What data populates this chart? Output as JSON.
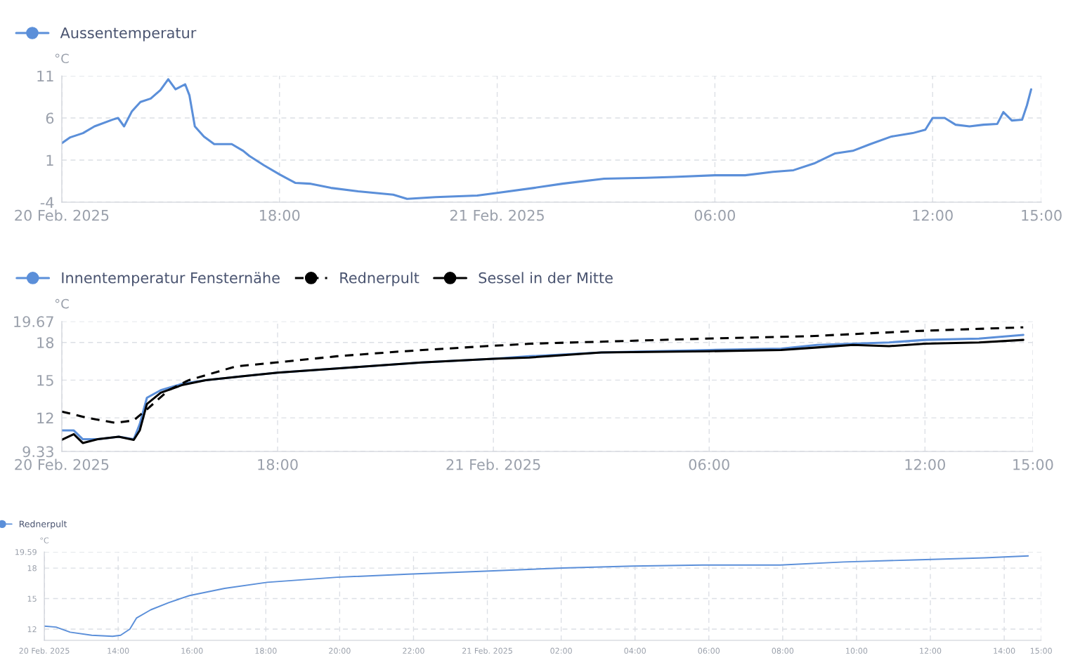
{
  "chart_data": [
    {
      "type": "line",
      "ylabel": "°C",
      "grid": true,
      "legend": "top left",
      "xlim": [
        "2025-02-20T12:00",
        "2025-02-21T15:00"
      ],
      "xticks": [
        {
          "value": "2025-02-20T12:00",
          "label": "20 Feb. 2025"
        },
        {
          "value": "2025-02-20T18:00",
          "label": "18:00"
        },
        {
          "value": "2025-02-21T00:00",
          "label": "21 Feb. 2025"
        },
        {
          "value": "2025-02-21T06:00",
          "label": "06:00"
        },
        {
          "value": "2025-02-21T12:00",
          "label": "12:00"
        },
        {
          "value": "2025-02-21T15:00",
          "label": "15:00"
        }
      ],
      "ylim": [
        -4,
        11
      ],
      "yticks": [
        -4,
        1,
        6,
        11
      ],
      "x": [
        "2025-02-20T12:00",
        "2025-02-20T12:14",
        "2025-02-20T12:35",
        "2025-02-20T12:54",
        "2025-02-20T13:24",
        "2025-02-20T13:33",
        "2025-02-20T13:43",
        "2025-02-20T13:56",
        "2025-02-20T14:10",
        "2025-02-20T14:27",
        "2025-02-20T14:43",
        "2025-02-20T14:56",
        "2025-02-20T15:08",
        "2025-02-20T15:24",
        "2025-02-20T15:31",
        "2025-02-20T15:40",
        "2025-02-20T15:55",
        "2025-02-20T16:12",
        "2025-02-20T16:41",
        "2025-02-20T17:00",
        "2025-02-20T17:10",
        "2025-02-20T17:34",
        "2025-02-20T18:00",
        "2025-02-20T18:26",
        "2025-02-20T18:50",
        "2025-02-20T19:25",
        "2025-02-20T20:10",
        "2025-02-20T21:08",
        "2025-02-20T21:31",
        "2025-02-20T22:18",
        "2025-02-20T23:27",
        "2025-02-21T00:00",
        "2025-02-21T01:01",
        "2025-02-21T01:48",
        "2025-02-21T02:57",
        "2025-02-21T04:06",
        "2025-02-21T04:52",
        "2025-02-21T06:00",
        "2025-02-21T06:50",
        "2025-02-21T07:36",
        "2025-02-21T08:10",
        "2025-02-21T08:44",
        "2025-02-21T09:19",
        "2025-02-21T09:48",
        "2025-02-21T10:17",
        "2025-02-21T10:52",
        "2025-02-21T11:27",
        "2025-02-21T11:48",
        "2025-02-21T12:00",
        "2025-02-21T12:20",
        "2025-02-21T12:38",
        "2025-02-21T13:01",
        "2025-02-21T13:24",
        "2025-02-21T13:47",
        "2025-02-21T13:57",
        "2025-02-21T14:11",
        "2025-02-21T14:28",
        "2025-02-21T14:36",
        "2025-02-21T14:43"
      ],
      "series": [
        {
          "name": "Aussentemperatur",
          "color": "#5b8fd9",
          "values": [
            3.0,
            3.7,
            4.2,
            5.0,
            5.8,
            6.0,
            5.0,
            6.8,
            7.9,
            8.3,
            9.3,
            10.6,
            9.4,
            10.0,
            8.7,
            5.0,
            3.8,
            2.9,
            2.9,
            2.1,
            1.5,
            0.4,
            -0.7,
            -1.7,
            -1.8,
            -2.3,
            -2.7,
            -3.1,
            -3.6,
            -3.4,
            -3.2,
            -2.9,
            -2.3,
            -1.8,
            -1.2,
            -1.1,
            -1.0,
            -0.8,
            -0.8,
            -0.4,
            -0.2,
            0.6,
            1.8,
            2.1,
            2.9,
            3.8,
            4.2,
            4.6,
            6.0,
            6.0,
            5.2,
            5.0,
            5.2,
            5.3,
            6.7,
            5.7,
            5.8,
            7.5,
            9.4
          ]
        }
      ]
    },
    {
      "type": "line",
      "ylabel": "°C",
      "grid": true,
      "legend": "top left",
      "xlim": [
        "2025-02-20T12:00",
        "2025-02-21T15:00"
      ],
      "xticks": [
        {
          "value": "2025-02-20T12:00",
          "label": "20 Feb. 2025"
        },
        {
          "value": "2025-02-20T18:00",
          "label": "18:00"
        },
        {
          "value": "2025-02-21T00:00",
          "label": "21 Feb. 2025"
        },
        {
          "value": "2025-02-21T06:00",
          "label": "06:00"
        },
        {
          "value": "2025-02-21T12:00",
          "label": "12:00"
        },
        {
          "value": "2025-02-21T15:00",
          "label": "15:00"
        }
      ],
      "ylim": [
        9.33,
        19.67
      ],
      "yticks": [
        9.33,
        12,
        15,
        18,
        19.67
      ],
      "x": [
        "2025-02-20T12:00",
        "2025-02-20T12:20",
        "2025-02-20T12:35",
        "2025-02-20T13:00",
        "2025-02-20T13:35",
        "2025-02-20T14:00",
        "2025-02-20T14:10",
        "2025-02-20T14:22",
        "2025-02-20T14:45",
        "2025-02-20T15:20",
        "2025-02-20T16:00",
        "2025-02-20T17:00",
        "2025-02-20T18:00",
        "2025-02-20T20:00",
        "2025-02-20T22:00",
        "2025-02-21T00:00",
        "2025-02-21T01:00",
        "2025-02-21T03:00",
        "2025-02-21T06:00",
        "2025-02-21T08:00",
        "2025-02-21T09:00",
        "2025-02-21T10:00",
        "2025-02-21T11:00",
        "2025-02-21T12:00",
        "2025-02-21T13:30",
        "2025-02-21T14:44"
      ],
      "series": [
        {
          "name": "Innentemperatur Fensternähe",
          "color": "#5b8fd9",
          "values": [
            11.0,
            11.0,
            10.3,
            10.3,
            10.5,
            10.3,
            11.5,
            13.6,
            14.2,
            14.7,
            15.0,
            15.3,
            15.6,
            16.0,
            16.4,
            16.7,
            16.9,
            17.2,
            17.4,
            17.5,
            17.8,
            17.9,
            18.0,
            18.2,
            18.3,
            18.6
          ]
        },
        {
          "name": "Rednerpult",
          "color": "#000000",
          "line_style": "dashed",
          "x": [
            "2025-02-20T12:00",
            "2025-02-20T12:43",
            "2025-02-20T13:30",
            "2025-02-20T14:00",
            "2025-02-20T14:25",
            "2025-02-20T14:58",
            "2025-02-20T15:32",
            "2025-02-20T16:51",
            "2025-02-20T17:57",
            "2025-02-20T19:39",
            "2025-02-20T21:31",
            "2025-02-20T23:47",
            "2025-02-21T01:03",
            "2025-02-21T05:54",
            "2025-02-21T08:49",
            "2025-02-21T11:44",
            "2025-02-21T14:44"
          ],
          "values": [
            12.5,
            12.0,
            11.6,
            11.8,
            12.8,
            14.2,
            15.0,
            16.1,
            16.4,
            16.9,
            17.3,
            17.7,
            17.9,
            18.3,
            18.5,
            18.9,
            19.2
          ]
        },
        {
          "name": "Sessel in der Mitte",
          "color": "#000000",
          "values": [
            10.25,
            10.7,
            10.0,
            10.3,
            10.5,
            10.25,
            11.0,
            13.1,
            14.0,
            14.6,
            15.0,
            15.3,
            15.6,
            16.0,
            16.4,
            16.7,
            16.8,
            17.2,
            17.3,
            17.4,
            17.6,
            17.8,
            17.7,
            17.9,
            18.0,
            18.2
          ]
        }
      ]
    },
    {
      "type": "line",
      "ylabel": "°C",
      "grid": true,
      "legend": "top left",
      "xlim": [
        "2025-02-20T12:00",
        "2025-02-21T15:00"
      ],
      "xticks": [
        {
          "value": "2025-02-20T12:00",
          "label": "20 Feb. 2025"
        },
        {
          "value": "2025-02-20T14:00",
          "label": "14:00"
        },
        {
          "value": "2025-02-20T16:00",
          "label": "16:00"
        },
        {
          "value": "2025-02-20T18:00",
          "label": "18:00"
        },
        {
          "value": "2025-02-20T20:00",
          "label": "20:00"
        },
        {
          "value": "2025-02-20T22:00",
          "label": "22:00"
        },
        {
          "value": "2025-02-21T00:00",
          "label": "21 Feb. 2025"
        },
        {
          "value": "2025-02-21T02:00",
          "label": "02:00"
        },
        {
          "value": "2025-02-21T04:00",
          "label": "04:00"
        },
        {
          "value": "2025-02-21T06:00",
          "label": "06:00"
        },
        {
          "value": "2025-02-21T08:00",
          "label": "08:00"
        },
        {
          "value": "2025-02-21T10:00",
          "label": "10:00"
        },
        {
          "value": "2025-02-21T12:00",
          "label": "12:00"
        },
        {
          "value": "2025-02-21T14:00",
          "label": "14:00"
        },
        {
          "value": "2025-02-21T15:00",
          "label": "15:00"
        }
      ],
      "ylim": [
        10.9,
        19.59
      ],
      "yticks": [
        12,
        15,
        18,
        19.59
      ],
      "x": [
        "2025-02-20T12:00",
        "2025-02-20T12:19",
        "2025-02-20T12:42",
        "2025-02-20T13:17",
        "2025-02-20T13:51",
        "2025-02-20T14:04",
        "2025-02-20T14:19",
        "2025-02-20T14:30",
        "2025-02-20T14:53",
        "2025-02-20T15:22",
        "2025-02-20T15:56",
        "2025-02-20T16:53",
        "2025-02-20T18:02",
        "2025-02-20T19:56",
        "2025-02-20T21:51",
        "2025-02-20T23:56",
        "2025-02-21T02:02",
        "2025-02-21T03:56",
        "2025-02-21T05:50",
        "2025-02-21T07:56",
        "2025-02-21T09:39",
        "2025-02-21T11:33",
        "2025-02-21T13:28",
        "2025-02-21T14:39"
      ],
      "series": [
        {
          "name": "Rednerpult",
          "color": "#5b8fd9",
          "values": [
            12.3,
            12.2,
            11.7,
            11.4,
            11.3,
            11.4,
            12.0,
            13.1,
            13.9,
            14.6,
            15.3,
            16.0,
            16.6,
            17.1,
            17.4,
            17.7,
            18.0,
            18.2,
            18.3,
            18.3,
            18.6,
            18.8,
            19.0,
            19.2
          ]
        }
      ]
    }
  ]
}
